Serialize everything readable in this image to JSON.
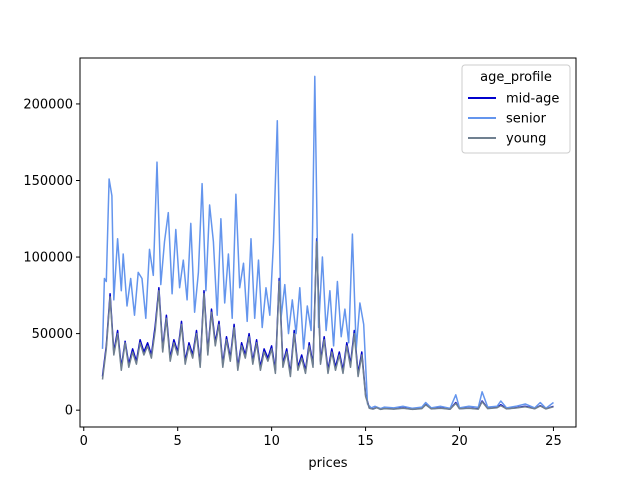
{
  "chart_data": {
    "type": "line",
    "title": "",
    "xlabel": "prices",
    "ylabel": "",
    "xlim": [
      -0.2,
      26.2
    ],
    "ylim": [
      -11000,
      230000
    ],
    "x_ticks": [
      0,
      5,
      10,
      15,
      20,
      25
    ],
    "y_ticks": [
      0,
      50000,
      100000,
      150000,
      200000
    ],
    "legend": {
      "title": "age_profile",
      "position": "top-right"
    },
    "grid": false,
    "series": [
      {
        "name": "mid-age",
        "color": "#0000cd",
        "points": [
          [
            1.0,
            22000
          ],
          [
            1.2,
            42000
          ],
          [
            1.4,
            76000
          ],
          [
            1.6,
            38000
          ],
          [
            1.8,
            52000
          ],
          [
            2.0,
            28000
          ],
          [
            2.2,
            45000
          ],
          [
            2.4,
            30000
          ],
          [
            2.6,
            40000
          ],
          [
            2.8,
            32000
          ],
          [
            3.0,
            46000
          ],
          [
            3.2,
            38000
          ],
          [
            3.4,
            44000
          ],
          [
            3.6,
            36000
          ],
          [
            3.8,
            55000
          ],
          [
            4.0,
            80000
          ],
          [
            4.2,
            40000
          ],
          [
            4.4,
            62000
          ],
          [
            4.6,
            34000
          ],
          [
            4.8,
            46000
          ],
          [
            5.0,
            38000
          ],
          [
            5.2,
            58000
          ],
          [
            5.4,
            32000
          ],
          [
            5.6,
            44000
          ],
          [
            5.8,
            36000
          ],
          [
            6.0,
            52000
          ],
          [
            6.2,
            30000
          ],
          [
            6.4,
            78000
          ],
          [
            6.6,
            38000
          ],
          [
            6.8,
            66000
          ],
          [
            7.0,
            44000
          ],
          [
            7.2,
            58000
          ],
          [
            7.4,
            30000
          ],
          [
            7.6,
            48000
          ],
          [
            7.8,
            34000
          ],
          [
            8.0,
            56000
          ],
          [
            8.2,
            28000
          ],
          [
            8.4,
            44000
          ],
          [
            8.6,
            36000
          ],
          [
            8.8,
            50000
          ],
          [
            9.0,
            32000
          ],
          [
            9.2,
            46000
          ],
          [
            9.4,
            28000
          ],
          [
            9.6,
            40000
          ],
          [
            9.8,
            34000
          ],
          [
            10.0,
            42000
          ],
          [
            10.2,
            26000
          ],
          [
            10.4,
            86000
          ],
          [
            10.6,
            30000
          ],
          [
            10.8,
            40000
          ],
          [
            11.0,
            24000
          ],
          [
            11.2,
            52000
          ],
          [
            11.4,
            28000
          ],
          [
            11.6,
            36000
          ],
          [
            11.8,
            26000
          ],
          [
            12.0,
            44000
          ],
          [
            12.2,
            30000
          ],
          [
            12.4,
            112000
          ],
          [
            12.6,
            32000
          ],
          [
            12.8,
            48000
          ],
          [
            13.0,
            26000
          ],
          [
            13.2,
            40000
          ],
          [
            13.4,
            28000
          ],
          [
            13.6,
            38000
          ],
          [
            13.8,
            26000
          ],
          [
            14.0,
            44000
          ],
          [
            14.2,
            30000
          ],
          [
            14.4,
            52000
          ],
          [
            14.6,
            24000
          ],
          [
            14.8,
            38000
          ],
          [
            15.0,
            10000
          ],
          [
            15.2,
            1500
          ],
          [
            15.4,
            800
          ],
          [
            15.6,
            1800
          ],
          [
            15.8,
            600
          ],
          [
            16.0,
            1200
          ],
          [
            16.5,
            800
          ],
          [
            17.0,
            1500
          ],
          [
            17.5,
            600
          ],
          [
            18.0,
            1200
          ],
          [
            18.2,
            4000
          ],
          [
            18.5,
            900
          ],
          [
            19.0,
            1500
          ],
          [
            19.5,
            700
          ],
          [
            19.8,
            5000
          ],
          [
            20.0,
            1000
          ],
          [
            20.5,
            1400
          ],
          [
            21.0,
            800
          ],
          [
            21.2,
            6000
          ],
          [
            21.5,
            1200
          ],
          [
            22.0,
            1800
          ],
          [
            22.2,
            3500
          ],
          [
            22.5,
            900
          ],
          [
            23.0,
            1600
          ],
          [
            23.5,
            2500
          ],
          [
            24.0,
            1000
          ],
          [
            24.3,
            3000
          ],
          [
            24.6,
            900
          ],
          [
            25.0,
            2500
          ]
        ]
      },
      {
        "name": "senior",
        "color": "#6495ed",
        "points": [
          [
            1.0,
            40000
          ],
          [
            1.1,
            86000
          ],
          [
            1.2,
            84000
          ],
          [
            1.35,
            151000
          ],
          [
            1.5,
            140000
          ],
          [
            1.6,
            72000
          ],
          [
            1.8,
            112000
          ],
          [
            2.0,
            78000
          ],
          [
            2.1,
            102000
          ],
          [
            2.3,
            68000
          ],
          [
            2.5,
            86000
          ],
          [
            2.7,
            62000
          ],
          [
            2.9,
            90000
          ],
          [
            3.1,
            86000
          ],
          [
            3.3,
            60000
          ],
          [
            3.5,
            105000
          ],
          [
            3.7,
            88000
          ],
          [
            3.9,
            162000
          ],
          [
            4.1,
            82000
          ],
          [
            4.3,
            110000
          ],
          [
            4.5,
            129000
          ],
          [
            4.7,
            76000
          ],
          [
            4.9,
            118000
          ],
          [
            5.1,
            80000
          ],
          [
            5.3,
            98000
          ],
          [
            5.5,
            72000
          ],
          [
            5.7,
            122000
          ],
          [
            5.9,
            64000
          ],
          [
            6.1,
            90000
          ],
          [
            6.3,
            148000
          ],
          [
            6.5,
            78000
          ],
          [
            6.7,
            134000
          ],
          [
            6.9,
            110000
          ],
          [
            7.1,
            62000
          ],
          [
            7.3,
            125000
          ],
          [
            7.5,
            70000
          ],
          [
            7.7,
            102000
          ],
          [
            7.9,
            60000
          ],
          [
            8.1,
            141000
          ],
          [
            8.3,
            80000
          ],
          [
            8.5,
            96000
          ],
          [
            8.7,
            58000
          ],
          [
            8.9,
            112000
          ],
          [
            9.1,
            60000
          ],
          [
            9.3,
            98000
          ],
          [
            9.5,
            54000
          ],
          [
            9.7,
            80000
          ],
          [
            9.9,
            62000
          ],
          [
            10.1,
            110000
          ],
          [
            10.3,
            189000
          ],
          [
            10.5,
            60000
          ],
          [
            10.7,
            82000
          ],
          [
            10.9,
            50000
          ],
          [
            11.1,
            72000
          ],
          [
            11.3,
            50000
          ],
          [
            11.5,
            80000
          ],
          [
            11.7,
            40000
          ],
          [
            11.9,
            68000
          ],
          [
            12.1,
            52000
          ],
          [
            12.3,
            218000
          ],
          [
            12.5,
            54000
          ],
          [
            12.7,
            100000
          ],
          [
            12.9,
            52000
          ],
          [
            13.1,
            78000
          ],
          [
            13.3,
            42000
          ],
          [
            13.5,
            84000
          ],
          [
            13.7,
            48000
          ],
          [
            13.9,
            66000
          ],
          [
            14.1,
            44000
          ],
          [
            14.3,
            115000
          ],
          [
            14.5,
            40000
          ],
          [
            14.7,
            70000
          ],
          [
            14.9,
            56000
          ],
          [
            15.1,
            4000
          ],
          [
            15.3,
            1500
          ],
          [
            15.5,
            2500
          ],
          [
            15.8,
            1000
          ],
          [
            16.0,
            2000
          ],
          [
            16.5,
            1500
          ],
          [
            17.0,
            2500
          ],
          [
            17.5,
            1200
          ],
          [
            18.0,
            2000
          ],
          [
            18.2,
            5000
          ],
          [
            18.5,
            1500
          ],
          [
            19.0,
            2500
          ],
          [
            19.5,
            1200
          ],
          [
            19.8,
            10000
          ],
          [
            20.0,
            1500
          ],
          [
            20.5,
            2500
          ],
          [
            21.0,
            1800
          ],
          [
            21.2,
            12000
          ],
          [
            21.5,
            2000
          ],
          [
            22.0,
            2500
          ],
          [
            22.2,
            6000
          ],
          [
            22.5,
            1500
          ],
          [
            23.0,
            2500
          ],
          [
            23.5,
            4000
          ],
          [
            24.0,
            1500
          ],
          [
            24.3,
            5000
          ],
          [
            24.6,
            1200
          ],
          [
            25.0,
            5000
          ]
        ]
      },
      {
        "name": "young",
        "color": "#708090",
        "points": [
          [
            1.0,
            20000
          ],
          [
            1.2,
            40000
          ],
          [
            1.4,
            74000
          ],
          [
            1.6,
            36000
          ],
          [
            1.8,
            50000
          ],
          [
            2.0,
            26000
          ],
          [
            2.2,
            44000
          ],
          [
            2.4,
            28000
          ],
          [
            2.6,
            38000
          ],
          [
            2.8,
            30000
          ],
          [
            3.0,
            44000
          ],
          [
            3.2,
            36000
          ],
          [
            3.4,
            42000
          ],
          [
            3.6,
            34000
          ],
          [
            3.8,
            52000
          ],
          [
            4.0,
            78000
          ],
          [
            4.2,
            38000
          ],
          [
            4.4,
            60000
          ],
          [
            4.6,
            32000
          ],
          [
            4.8,
            44000
          ],
          [
            5.0,
            36000
          ],
          [
            5.2,
            56000
          ],
          [
            5.4,
            30000
          ],
          [
            5.6,
            42000
          ],
          [
            5.8,
            34000
          ],
          [
            6.0,
            50000
          ],
          [
            6.2,
            28000
          ],
          [
            6.4,
            76000
          ],
          [
            6.6,
            36000
          ],
          [
            6.8,
            64000
          ],
          [
            7.0,
            42000
          ],
          [
            7.2,
            56000
          ],
          [
            7.4,
            28000
          ],
          [
            7.6,
            46000
          ],
          [
            7.8,
            32000
          ],
          [
            8.0,
            54000
          ],
          [
            8.2,
            26000
          ],
          [
            8.4,
            42000
          ],
          [
            8.6,
            34000
          ],
          [
            8.8,
            48000
          ],
          [
            9.0,
            30000
          ],
          [
            9.2,
            44000
          ],
          [
            9.4,
            26000
          ],
          [
            9.6,
            38000
          ],
          [
            9.8,
            32000
          ],
          [
            10.0,
            40000
          ],
          [
            10.2,
            24000
          ],
          [
            10.4,
            84000
          ],
          [
            10.6,
            28000
          ],
          [
            10.8,
            38000
          ],
          [
            11.0,
            22000
          ],
          [
            11.2,
            50000
          ],
          [
            11.4,
            26000
          ],
          [
            11.6,
            34000
          ],
          [
            11.8,
            24000
          ],
          [
            12.0,
            42000
          ],
          [
            12.2,
            28000
          ],
          [
            12.4,
            110000
          ],
          [
            12.6,
            30000
          ],
          [
            12.8,
            46000
          ],
          [
            13.0,
            24000
          ],
          [
            13.2,
            38000
          ],
          [
            13.4,
            26000
          ],
          [
            13.6,
            36000
          ],
          [
            13.8,
            24000
          ],
          [
            14.0,
            42000
          ],
          [
            14.2,
            28000
          ],
          [
            14.4,
            50000
          ],
          [
            14.6,
            22000
          ],
          [
            14.8,
            36000
          ],
          [
            15.0,
            9000
          ],
          [
            15.2,
            1200
          ],
          [
            15.4,
            700
          ],
          [
            15.6,
            1600
          ],
          [
            15.8,
            500
          ],
          [
            16.0,
            1000
          ],
          [
            16.5,
            700
          ],
          [
            17.0,
            1300
          ],
          [
            17.5,
            500
          ],
          [
            18.0,
            1000
          ],
          [
            18.2,
            3500
          ],
          [
            18.5,
            800
          ],
          [
            19.0,
            1300
          ],
          [
            19.5,
            600
          ],
          [
            19.8,
            4500
          ],
          [
            20.0,
            900
          ],
          [
            20.5,
            1200
          ],
          [
            21.0,
            700
          ],
          [
            21.2,
            5500
          ],
          [
            21.5,
            1000
          ],
          [
            22.0,
            1600
          ],
          [
            22.2,
            3000
          ],
          [
            22.5,
            800
          ],
          [
            23.0,
            1400
          ],
          [
            23.5,
            2200
          ],
          [
            24.0,
            900
          ],
          [
            24.3,
            2700
          ],
          [
            24.6,
            800
          ],
          [
            25.0,
            2200
          ]
        ]
      }
    ]
  }
}
